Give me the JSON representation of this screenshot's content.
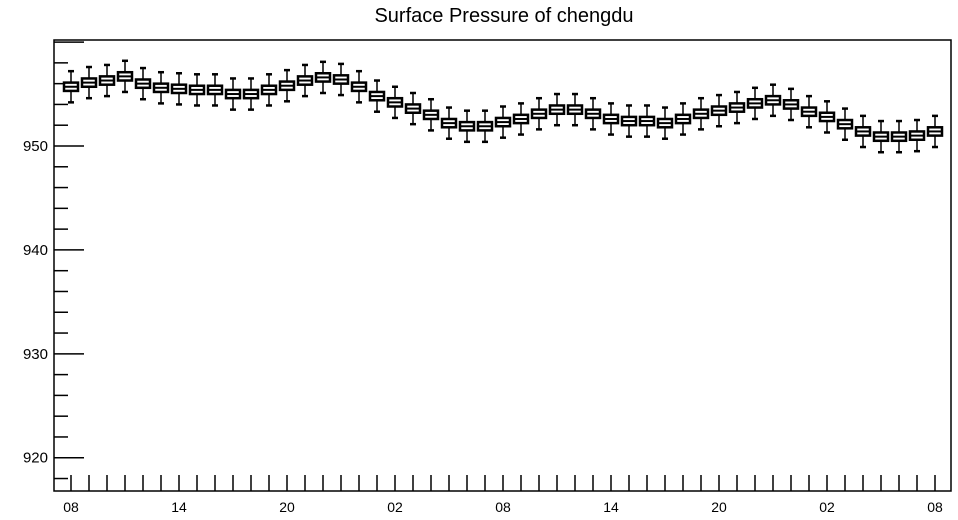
{
  "chart_data": {
    "type": "box",
    "title": "Surface Pressure of chengdu",
    "xlabel": "",
    "ylabel": "",
    "ylim": [
      916.8,
      960.2
    ],
    "yticks": [
      920,
      930,
      940,
      950
    ],
    "x_tick_labels": [
      "08",
      "14",
      "20",
      "02",
      "08",
      "14",
      "20",
      "02",
      "08"
    ],
    "x_tick_positions": [
      0,
      6,
      12,
      18,
      24,
      30,
      36,
      42,
      48
    ],
    "grid": false,
    "series": [
      {
        "medians": [
          955.7,
          956.1,
          956.3,
          956.7,
          956.0,
          955.6,
          955.5,
          955.4,
          955.4,
          955.0,
          955.0,
          955.4,
          955.8,
          956.3,
          956.6,
          956.4,
          955.7,
          954.8,
          954.2,
          953.6,
          953.0,
          952.2,
          951.9,
          951.9,
          952.3,
          952.6,
          953.1,
          953.5,
          953.5,
          953.1,
          952.6,
          952.4,
          952.4,
          952.2,
          952.6,
          953.1,
          953.4,
          953.7,
          954.1,
          954.4,
          954.0,
          953.3,
          952.8,
          952.1,
          951.4,
          950.9,
          950.9,
          951.0,
          951.4
        ],
        "whisker_range": 1.5,
        "box_half_height": 0.4
      }
    ]
  }
}
